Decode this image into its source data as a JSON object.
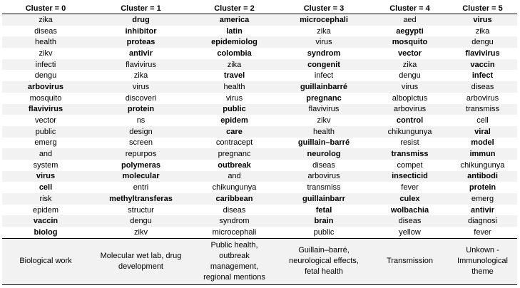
{
  "headers": [
    "Cluster = 0",
    "Cluster = 1",
    "Cluster = 2",
    "Cluster = 3",
    "Cluster = 4",
    "Cluster = 5"
  ],
  "rows": [
    [
      {
        "t": "zika",
        "b": false
      },
      {
        "t": "drug",
        "b": true
      },
      {
        "t": "america",
        "b": true
      },
      {
        "t": "microcephali",
        "b": true
      },
      {
        "t": "aed",
        "b": false
      },
      {
        "t": "virus",
        "b": true
      }
    ],
    [
      {
        "t": "diseas",
        "b": false
      },
      {
        "t": "inhibitor",
        "b": true
      },
      {
        "t": "latin",
        "b": true
      },
      {
        "t": "zika",
        "b": false
      },
      {
        "t": "aegypti",
        "b": true
      },
      {
        "t": "zika",
        "b": false
      }
    ],
    [
      {
        "t": "health",
        "b": false
      },
      {
        "t": "proteas",
        "b": true
      },
      {
        "t": "epidemiolog",
        "b": true
      },
      {
        "t": "virus",
        "b": false
      },
      {
        "t": "mosquito",
        "b": true
      },
      {
        "t": "dengu",
        "b": false
      }
    ],
    [
      {
        "t": "zikv",
        "b": false
      },
      {
        "t": "antivir",
        "b": true
      },
      {
        "t": "colombia",
        "b": true
      },
      {
        "t": "syndrom",
        "b": true
      },
      {
        "t": "vector",
        "b": true
      },
      {
        "t": "flavivirus",
        "b": true
      }
    ],
    [
      {
        "t": "infecti",
        "b": false
      },
      {
        "t": "flavivirus",
        "b": false
      },
      {
        "t": "zika",
        "b": false
      },
      {
        "t": "congenit",
        "b": true
      },
      {
        "t": "zika",
        "b": false
      },
      {
        "t": "vaccin",
        "b": true
      }
    ],
    [
      {
        "t": "dengu",
        "b": false
      },
      {
        "t": "zika",
        "b": false
      },
      {
        "t": "travel",
        "b": true
      },
      {
        "t": "infect",
        "b": false
      },
      {
        "t": "dengu",
        "b": false
      },
      {
        "t": "infect",
        "b": true
      }
    ],
    [
      {
        "t": "arbovirus",
        "b": true
      },
      {
        "t": "virus",
        "b": false
      },
      {
        "t": "health",
        "b": false
      },
      {
        "t": "guillainbarré",
        "b": true
      },
      {
        "t": "virus",
        "b": false
      },
      {
        "t": "diseas",
        "b": false
      }
    ],
    [
      {
        "t": "mosquito",
        "b": false
      },
      {
        "t": "discoveri",
        "b": false
      },
      {
        "t": "virus",
        "b": false
      },
      {
        "t": "pregnanc",
        "b": true
      },
      {
        "t": "albopictus",
        "b": false
      },
      {
        "t": "arbovirus",
        "b": false
      }
    ],
    [
      {
        "t": "flavivirus",
        "b": true
      },
      {
        "t": "protein",
        "b": true
      },
      {
        "t": "public",
        "b": true
      },
      {
        "t": "flavivirus",
        "b": false
      },
      {
        "t": "arbovirus",
        "b": false
      },
      {
        "t": "transmiss",
        "b": false
      }
    ],
    [
      {
        "t": "vector",
        "b": false
      },
      {
        "t": "ns",
        "b": false
      },
      {
        "t": "epidem",
        "b": true
      },
      {
        "t": "zikv",
        "b": false
      },
      {
        "t": "control",
        "b": true
      },
      {
        "t": "cell",
        "b": false
      }
    ],
    [
      {
        "t": "public",
        "b": false
      },
      {
        "t": "design",
        "b": false
      },
      {
        "t": "care",
        "b": true
      },
      {
        "t": "health",
        "b": false
      },
      {
        "t": "chikungunya",
        "b": false
      },
      {
        "t": "viral",
        "b": true
      }
    ],
    [
      {
        "t": "emerg",
        "b": false
      },
      {
        "t": "screen",
        "b": false
      },
      {
        "t": "contracept",
        "b": false
      },
      {
        "t": "guillain–barré",
        "b": true
      },
      {
        "t": "resist",
        "b": false
      },
      {
        "t": "model",
        "b": true
      }
    ],
    [
      {
        "t": "and",
        "b": false
      },
      {
        "t": "repurpos",
        "b": false
      },
      {
        "t": "pregnanc",
        "b": false
      },
      {
        "t": "neurolog",
        "b": true
      },
      {
        "t": "transmiss",
        "b": true
      },
      {
        "t": "immun",
        "b": true
      }
    ],
    [
      {
        "t": "system",
        "b": false
      },
      {
        "t": "polymeras",
        "b": true
      },
      {
        "t": "outbreak",
        "b": true
      },
      {
        "t": "diseas",
        "b": false
      },
      {
        "t": "compet",
        "b": false
      },
      {
        "t": "chikungunya",
        "b": false
      }
    ],
    [
      {
        "t": "virus",
        "b": true
      },
      {
        "t": "molecular",
        "b": true
      },
      {
        "t": "and",
        "b": false
      },
      {
        "t": "arbovirus",
        "b": false
      },
      {
        "t": "insecticid",
        "b": true
      },
      {
        "t": "antibodi",
        "b": true
      }
    ],
    [
      {
        "t": "cell",
        "b": true
      },
      {
        "t": "entri",
        "b": false
      },
      {
        "t": "chikungunya",
        "b": false
      },
      {
        "t": "transmiss",
        "b": false
      },
      {
        "t": "fever",
        "b": false
      },
      {
        "t": "protein",
        "b": true
      }
    ],
    [
      {
        "t": "risk",
        "b": false
      },
      {
        "t": "methyltransferas",
        "b": true
      },
      {
        "t": "caribbean",
        "b": true
      },
      {
        "t": "guillainbarr",
        "b": true
      },
      {
        "t": "culex",
        "b": true
      },
      {
        "t": "emerg",
        "b": false
      }
    ],
    [
      {
        "t": "epidem",
        "b": false
      },
      {
        "t": "structur",
        "b": false
      },
      {
        "t": "diseas",
        "b": false
      },
      {
        "t": "fetal",
        "b": true
      },
      {
        "t": "wolbachia",
        "b": true
      },
      {
        "t": "antivir",
        "b": true
      }
    ],
    [
      {
        "t": "vaccin",
        "b": true
      },
      {
        "t": "dengu",
        "b": false
      },
      {
        "t": "syndrom",
        "b": false
      },
      {
        "t": "brain",
        "b": true
      },
      {
        "t": "diseas",
        "b": false
      },
      {
        "t": "diagnosi",
        "b": false
      }
    ],
    [
      {
        "t": "biolog",
        "b": true
      },
      {
        "t": "zikv",
        "b": false
      },
      {
        "t": "microcephali",
        "b": false
      },
      {
        "t": "public",
        "b": false
      },
      {
        "t": "yellow",
        "b": false
      },
      {
        "t": "fever",
        "b": false
      }
    ]
  ],
  "themes": [
    [
      "Biological work"
    ],
    [
      "Molecular wet lab, drug",
      "development"
    ],
    [
      "Public health,",
      "outbreak",
      "management,",
      "regional mentions"
    ],
    [
      "Guillain–barré,",
      "neurological effects,",
      "fetal health"
    ],
    [
      "Transmission"
    ],
    [
      "Unkown -",
      "Immunological",
      "theme"
    ]
  ]
}
